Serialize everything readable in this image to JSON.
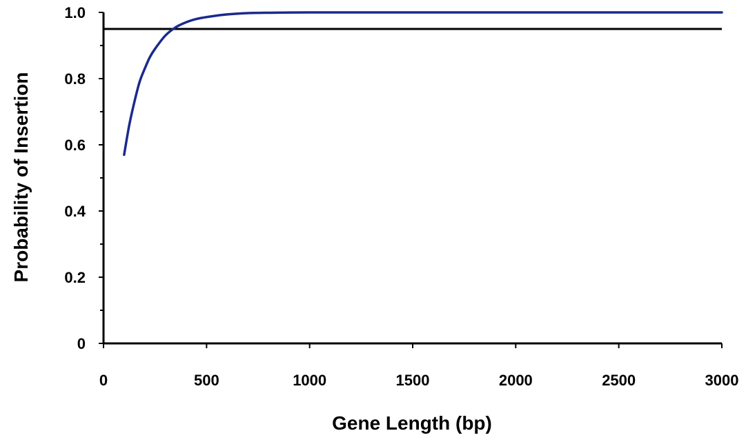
{
  "chart_data": {
    "type": "line",
    "title": "",
    "xlabel": "Gene Length (bp)",
    "ylabel": "Probability of Insertion",
    "xlim": [
      0,
      3000
    ],
    "ylim": [
      0,
      1.0
    ],
    "x_ticks": [
      0,
      500,
      1000,
      1500,
      2000,
      2500,
      3000
    ],
    "x_tick_labels": [
      "0",
      "500",
      "1000",
      "1500",
      "2000",
      "2500",
      "3000"
    ],
    "y_ticks": [
      0,
      0.2,
      0.4,
      0.6,
      0.8,
      1.0
    ],
    "y_tick_labels": [
      "0",
      "0.2",
      "0.4",
      "0.6",
      "0.8",
      "1.0"
    ],
    "y_minor_ticks": [
      0.1,
      0.3,
      0.5,
      0.7,
      0.9
    ],
    "grid": false,
    "legend": "none",
    "series": [
      {
        "color": "#1a2a8c",
        "x": [
          100,
          125,
          150,
          175,
          200,
          225,
          250,
          300,
          350,
          400,
          450,
          500,
          600,
          700,
          800,
          1000,
          1500,
          2000,
          2500,
          3000
        ],
        "y": [
          0.57,
          0.66,
          0.73,
          0.79,
          0.83,
          0.865,
          0.89,
          0.93,
          0.955,
          0.97,
          0.98,
          0.986,
          0.994,
          0.998,
          0.999,
          1.0,
          1.0,
          1.0,
          1.0,
          1.0
        ]
      }
    ],
    "reference_line": {
      "y": 0.95,
      "color": "#000000"
    }
  }
}
